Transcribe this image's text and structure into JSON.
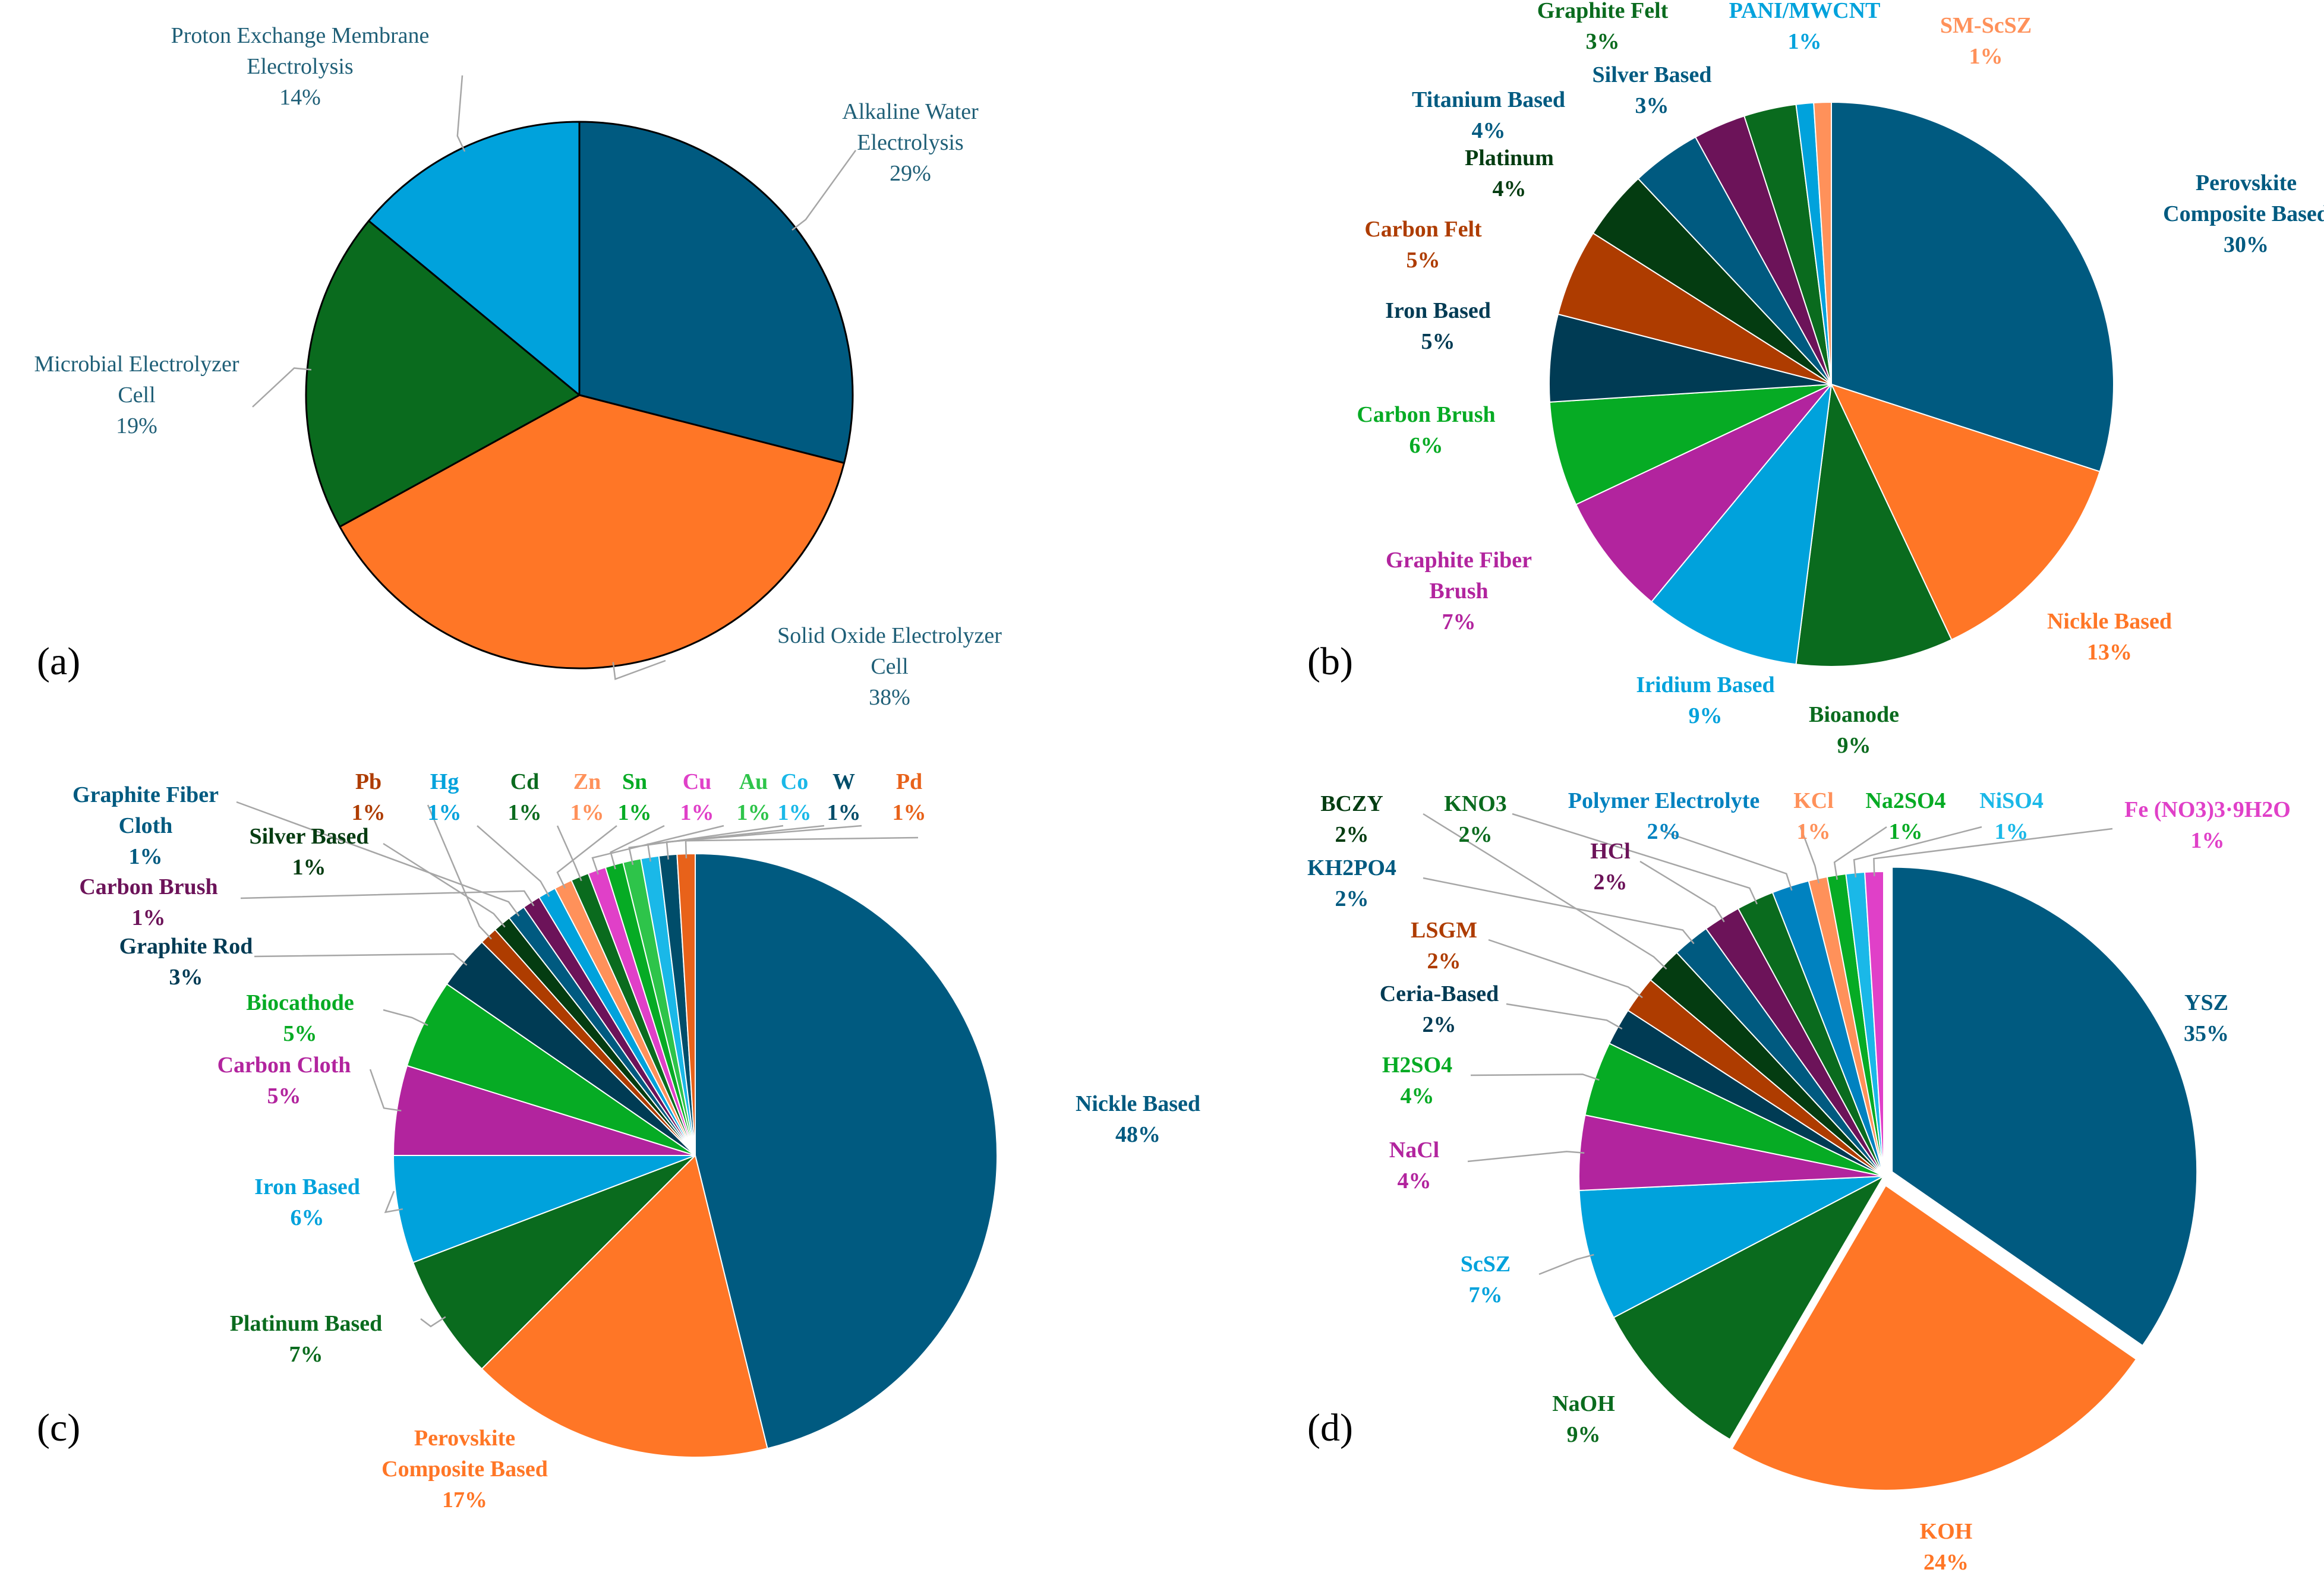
{
  "chart_data": [
    {
      "type": "pie",
      "panel": "(a)",
      "style": "normal",
      "slices": [
        {
          "label": "Alkaline Water\nElectrolysis",
          "pct": "29%",
          "value": 29,
          "color": "#005a80",
          "text_color": "#1f5f77",
          "leader": true
        },
        {
          "label": "Solid Oxide Electrolyzer\nCell",
          "pct": "38%",
          "value": 38,
          "color": "#ff7626",
          "text_color": "#1f5f77",
          "leader": true
        },
        {
          "label": "Microbial Electrolyzer\nCell",
          "pct": "19%",
          "value": 19,
          "color": "#0a6b1e",
          "text_color": "#1f5f77",
          "leader": true
        },
        {
          "label": "Proton Exchange Membrane\nElectrolysis",
          "pct": "14%",
          "value": 14,
          "color": "#00a2dc",
          "text_color": "#1f5f77",
          "leader": true
        }
      ]
    },
    {
      "type": "pie",
      "panel": "(b)",
      "style": "bold",
      "slices": [
        {
          "label": "Perovskite\nComposite Based",
          "pct": "30%",
          "value": 30,
          "color": "#005a80",
          "text_color": "#005a80"
        },
        {
          "label": "Nickle Based",
          "pct": "13%",
          "value": 13,
          "color": "#ff7626",
          "text_color": "#ff7626"
        },
        {
          "label": "Bioanode",
          "pct": "9%",
          "value": 9,
          "color": "#0a6b1e",
          "text_color": "#0a6b1e"
        },
        {
          "label": "Iridium Based",
          "pct": "9%",
          "value": 9,
          "color": "#00a2dc",
          "text_color": "#00a2dc"
        },
        {
          "label": "Graphite Fiber\nBrush",
          "pct": "7%",
          "value": 7,
          "color": "#b2249e",
          "text_color": "#b2249e"
        },
        {
          "label": "Carbon Brush",
          "pct": "6%",
          "value": 6,
          "color": "#06ab24",
          "text_color": "#06ab24"
        },
        {
          "label": "Iron Based",
          "pct": "5%",
          "value": 5,
          "color": "#003b54",
          "text_color": "#003b54"
        },
        {
          "label": "Carbon Felt",
          "pct": "5%",
          "value": 5,
          "color": "#ae3c00",
          "text_color": "#ae3c00"
        },
        {
          "label": "Platinum",
          "pct": "4%",
          "value": 4,
          "color": "#043c11",
          "text_color": "#043c11"
        },
        {
          "label": "Titanium Based",
          "pct": "4%",
          "value": 4,
          "color": "#005a80",
          "text_color": "#005a80"
        },
        {
          "label": "Silver Based",
          "pct": "3%",
          "value": 3,
          "color": "#6c1359",
          "text_color": "#005a80"
        },
        {
          "label": "Graphite Felt",
          "pct": "3%",
          "value": 3,
          "color": "#0a6b1e",
          "text_color": "#0a6b1e"
        },
        {
          "label": "PANI/MWCNT",
          "pct": "1%",
          "value": 1,
          "color": "#00a2dc",
          "text_color": "#00a2dc"
        },
        {
          "label": "SM-ScSZ",
          "pct": "1%",
          "value": 1,
          "color": "#ff915a",
          "text_color": "#ff915a"
        }
      ]
    },
    {
      "type": "pie",
      "panel": "(c)",
      "style": "bold",
      "slices": [
        {
          "label": "Nickle Based",
          "pct": "48%",
          "value": 48,
          "color": "#005a80",
          "text_color": "#005a80"
        },
        {
          "label": "Perovskite\nComposite Based",
          "pct": "17%",
          "value": 17,
          "color": "#ff7626",
          "text_color": "#ff7626"
        },
        {
          "label": "Platinum Based",
          "pct": "7%",
          "value": 7,
          "color": "#0a6b1e",
          "text_color": "#0a6b1e",
          "leader": true
        },
        {
          "label": "Iron Based",
          "pct": "6%",
          "value": 6,
          "color": "#00a2dc",
          "text_color": "#00a2dc",
          "leader": true
        },
        {
          "label": "Carbon Cloth",
          "pct": "5%",
          "value": 5,
          "color": "#b2249e",
          "text_color": "#b2249e",
          "leader": true
        },
        {
          "label": "Biocathode",
          "pct": "5%",
          "value": 5,
          "color": "#06ab24",
          "text_color": "#06ab24",
          "leader": true
        },
        {
          "label": "Graphite Rod",
          "pct": "3%",
          "value": 3,
          "color": "#003b54",
          "text_color": "#003b54",
          "leader": true
        },
        {
          "label": "Pb",
          "pct": "1%",
          "value": 1,
          "color": "#ae3c00",
          "text_color": "#ae3c00",
          "leader": true
        },
        {
          "label": "Silver Based",
          "pct": "1%",
          "value": 1,
          "color": "#043c11",
          "text_color": "#043c11",
          "leader": true
        },
        {
          "label": "Graphite Fiber\nCloth",
          "pct": "1%",
          "value": 1,
          "color": "#005a80",
          "text_color": "#005a80",
          "leader": true
        },
        {
          "label": "Carbon Brush",
          "pct": "1%",
          "value": 1,
          "color": "#6c1359",
          "text_color": "#6c1359",
          "leader": true
        },
        {
          "label": "Hg",
          "pct": "1%",
          "value": 1,
          "color": "#00a2dc",
          "text_color": "#00a2dc",
          "leader": true
        },
        {
          "label": "Zn",
          "pct": "1%",
          "value": 1,
          "color": "#ff915a",
          "text_color": "#ff915a",
          "leader": true
        },
        {
          "label": "Cd",
          "pct": "1%",
          "value": 1,
          "color": "#0a6b1e",
          "text_color": "#0a6b1e",
          "leader": true
        },
        {
          "label": "Cu",
          "pct": "1%",
          "value": 1,
          "color": "#e040c8",
          "text_color": "#e040c8",
          "leader": true
        },
        {
          "label": "Sn",
          "pct": "1%",
          "value": 1,
          "color": "#06ab24",
          "text_color": "#06ab24",
          "leader": true
        },
        {
          "label": "Au",
          "pct": "1%",
          "value": 1,
          "color": "#2ec44a",
          "text_color": "#2ec44a",
          "leader": true
        },
        {
          "label": "Co",
          "pct": "1%",
          "value": 1,
          "color": "#1ab8e8",
          "text_color": "#1ab8e8",
          "leader": true
        },
        {
          "label": "W",
          "pct": "1%",
          "value": 1,
          "color": "#004d6a",
          "text_color": "#004d6a",
          "leader": true
        },
        {
          "label": "Pd",
          "pct": "1%",
          "value": 1,
          "color": "#e8621a",
          "text_color": "#e8621a",
          "leader": true
        }
      ]
    },
    {
      "type": "pie",
      "panel": "(d)",
      "style": "bold",
      "slices": [
        {
          "label": "YSZ",
          "pct": "35%",
          "value": 35,
          "color": "#005a80",
          "text_color": "#005a80",
          "explode": true
        },
        {
          "label": "KOH",
          "pct": "24%",
          "value": 24,
          "color": "#ff7626",
          "text_color": "#ff7626",
          "explode": true
        },
        {
          "label": "NaOH",
          "pct": "9%",
          "value": 9,
          "color": "#0a6b1e",
          "text_color": "#0a6b1e"
        },
        {
          "label": "ScSZ",
          "pct": "7%",
          "value": 7,
          "color": "#00a2dc",
          "text_color": "#00a2dc",
          "leader": true
        },
        {
          "label": "NaCl",
          "pct": "4%",
          "value": 4,
          "color": "#b2249e",
          "text_color": "#b2249e",
          "leader": true
        },
        {
          "label": "H2SO4",
          "pct": "4%",
          "value": 4,
          "color": "#06ab24",
          "text_color": "#06ab24",
          "leader": true
        },
        {
          "label": "Ceria-Based",
          "pct": "2%",
          "value": 2,
          "color": "#003b54",
          "text_color": "#003b54",
          "leader": true
        },
        {
          "label": "LSGM",
          "pct": "2%",
          "value": 2,
          "color": "#ae3c00",
          "text_color": "#ae3c00",
          "leader": true
        },
        {
          "label": "BCZY",
          "pct": "2%",
          "value": 2,
          "color": "#043c11",
          "text_color": "#043c11",
          "leader": true
        },
        {
          "label": "KH2PO4",
          "pct": "2%",
          "value": 2,
          "color": "#005a80",
          "text_color": "#005a80",
          "leader": true
        },
        {
          "label": "HCl",
          "pct": "2%",
          "value": 2,
          "color": "#6c1359",
          "text_color": "#6c1359",
          "leader": true
        },
        {
          "label": "KNO3",
          "pct": "2%",
          "value": 2,
          "color": "#0a6b1e",
          "text_color": "#0a6b1e",
          "leader": true
        },
        {
          "label": "Polymer Electrolyte",
          "pct": "2%",
          "value": 2,
          "color": "#0082c0",
          "text_color": "#0082c0",
          "leader": true
        },
        {
          "label": "KCl",
          "pct": "1%",
          "value": 1,
          "color": "#ff915a",
          "text_color": "#ff915a",
          "leader": true
        },
        {
          "label": "Na2SO4",
          "pct": "1%",
          "value": 1,
          "color": "#06ab24",
          "text_color": "#06ab24",
          "leader": true
        },
        {
          "label": "NiSO4",
          "pct": "1%",
          "value": 1,
          "color": "#1ab8e8",
          "text_color": "#1ab8e8",
          "leader": true
        },
        {
          "label": "Fe (NO3)3·9H2O",
          "pct": "1%",
          "value": 1,
          "color": "#e040c8",
          "text_color": "#e040c8",
          "leader": true
        }
      ]
    }
  ]
}
